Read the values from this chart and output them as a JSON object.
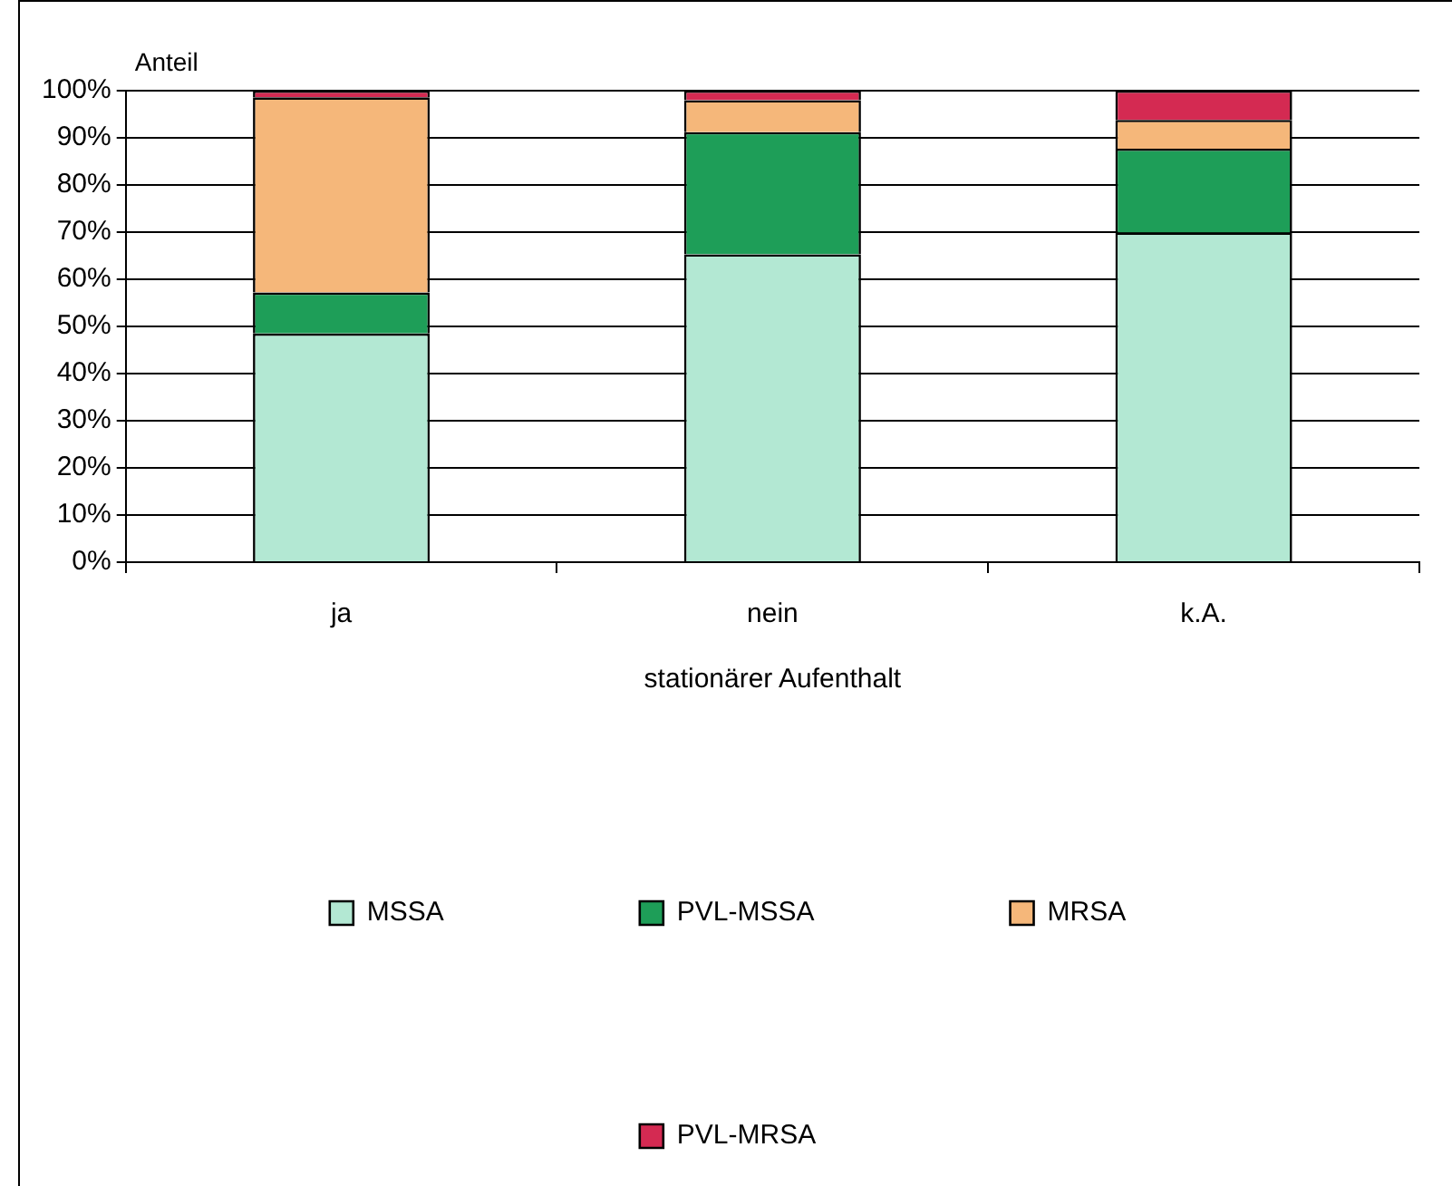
{
  "chart_data": {
    "type": "bar",
    "stacked": true,
    "xlabel": "stationärer Aufenthalt",
    "ylabel": "Anteil",
    "categories": [
      "ja",
      "nein",
      "k.A."
    ],
    "series": [
      {
        "name": "MSSA",
        "color": "#b3e8d3",
        "values": [
          48.5,
          65.3,
          69.9
        ]
      },
      {
        "name": "PVL-MSSA",
        "color": "#1e9e58",
        "values": [
          8.7,
          25.9,
          17.8
        ]
      },
      {
        "name": "MRSA",
        "color": "#f5b77a",
        "values": [
          41.4,
          6.8,
          6.1
        ]
      },
      {
        "name": "PVL-MRSA",
        "color": "#d42a52",
        "values": [
          1.4,
          2.0,
          6.2
        ]
      }
    ],
    "ylim": [
      0,
      100
    ],
    "yticks": [
      {
        "value": 0,
        "label": "0%"
      },
      {
        "value": 10,
        "label": "10%"
      },
      {
        "value": 20,
        "label": "20%"
      },
      {
        "value": 30,
        "label": "30%"
      },
      {
        "value": 40,
        "label": "40%"
      },
      {
        "value": 50,
        "label": "50%"
      },
      {
        "value": 60,
        "label": "60%"
      },
      {
        "value": 70,
        "label": "70%"
      },
      {
        "value": 80,
        "label": "80%"
      },
      {
        "value": 90,
        "label": "90%"
      },
      {
        "value": 100,
        "label": "100%"
      }
    ],
    "grid": "y",
    "legend": "bottom"
  }
}
